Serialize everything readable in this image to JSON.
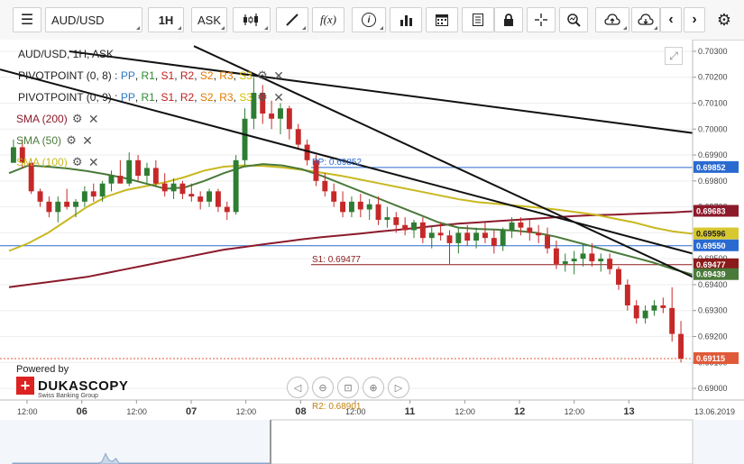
{
  "toolbar": {
    "symbol": "AUD/USD",
    "timeframe": "1H",
    "side": "ASK",
    "function_icon_text": "f(x)"
  },
  "legend": {
    "instrument_line": "AUD/USD, 1H, ASK",
    "pivot1": {
      "name": "PIVOTPOINT (0, 8)",
      "sep": " : ",
      "levels": [
        "PP",
        "R1",
        "S1",
        "R2",
        "S2",
        "R3",
        "S3"
      ]
    },
    "pivot2": {
      "name": "PIVOTPOINT (0, 9)",
      "sep": " : ",
      "levels": [
        "PP",
        "R1",
        "S1",
        "R2",
        "S2",
        "R3",
        "S3"
      ]
    },
    "sma200": "SMA (200)",
    "sma50": "SMA (50)",
    "sma100": "SMA (100)"
  },
  "chart_labels": {
    "pp_line": "PP: 0.69852",
    "s1_line": "S1: 0.69477",
    "bottom_cut": "R2: 0.68901"
  },
  "branding": {
    "powered_by": "Powered by",
    "name": "DUKASCOPY",
    "tagline": "Swiss Banking Group"
  },
  "colors": {
    "bull": "#2e7d32",
    "bear": "#c62828",
    "sma200": "#8b1a2b",
    "sma50": "#4a7a3a",
    "sma100": "#c8b820",
    "pivot_line": "#2a6ad0",
    "s1_line": "#8b1a1a"
  },
  "chart_data": {
    "type": "candlestick",
    "y_axis": {
      "ylim": [
        0.68955,
        0.70345
      ],
      "ticks": [
        "0.70300",
        "0.70200",
        "0.70100",
        "0.70000",
        "0.69900",
        "0.69800",
        "0.69700",
        "0.69600",
        "0.69500",
        "0.69400",
        "0.69300",
        "0.69200",
        "0.69100",
        "0.69000"
      ]
    },
    "x_axis": {
      "labels": [
        {
          "text": "12:00",
          "bold": false
        },
        {
          "text": "06",
          "bold": true
        },
        {
          "text": "12:00",
          "bold": false
        },
        {
          "text": "07",
          "bold": true
        },
        {
          "text": "12:00",
          "bold": false
        },
        {
          "text": "08",
          "bold": true
        },
        {
          "text": "12:00",
          "bold": false
        },
        {
          "text": "11",
          "bold": true
        },
        {
          "text": "12:00",
          "bold": false
        },
        {
          "text": "12",
          "bold": true
        },
        {
          "text": "12:00",
          "bold": false
        },
        {
          "text": "13",
          "bold": true
        }
      ],
      "end_label": "13.06.2019"
    },
    "price_tags": [
      {
        "text": "0.69852",
        "value": 0.69852,
        "bg": "#2a6ad0",
        "fg": "#ffffff"
      },
      {
        "text": "0.69683",
        "value": 0.69683,
        "bg": "#8b1a2b",
        "fg": "#ffffff"
      },
      {
        "text": "0.69596",
        "value": 0.69596,
        "bg": "#d8c830",
        "fg": "#222222"
      },
      {
        "text": "0.69550",
        "value": 0.6955,
        "bg": "#2a6ad0",
        "fg": "#ffffff"
      },
      {
        "text": "0.69477",
        "value": 0.69477,
        "bg": "#8b1a1a",
        "fg": "#ffffff"
      },
      {
        "text": "0.69439",
        "value": 0.69439,
        "bg": "#4a7a3a",
        "fg": "#ffffff"
      },
      {
        "text": "0.69115",
        "value": 0.69115,
        "bg": "#e05a3a",
        "fg": "#ffffff"
      }
    ],
    "horizontal_levels": {
      "pivot_pp": 0.69852,
      "pivot_blue": 0.6955,
      "s1": 0.69477,
      "last_price": 0.69115
    },
    "candles": [
      [
        0.6987,
        0.6996,
        0.6988,
        0.6993
      ],
      [
        0.6993,
        0.6996,
        0.6985,
        0.6987
      ],
      [
        0.6987,
        0.6988,
        0.6975,
        0.6976
      ],
      [
        0.6976,
        0.6977,
        0.697,
        0.6972
      ],
      [
        0.6972,
        0.6974,
        0.6966,
        0.6968
      ],
      [
        0.6968,
        0.6974,
        0.6964,
        0.6972
      ],
      [
        0.6972,
        0.6977,
        0.6969,
        0.697
      ],
      [
        0.697,
        0.6973,
        0.6966,
        0.6972
      ],
      [
        0.6972,
        0.6978,
        0.697,
        0.6976
      ],
      [
        0.6976,
        0.6979,
        0.6972,
        0.6974
      ],
      [
        0.6974,
        0.698,
        0.6972,
        0.6979
      ],
      [
        0.6979,
        0.6984,
        0.6976,
        0.6982
      ],
      [
        0.6982,
        0.6988,
        0.698,
        0.6979
      ],
      [
        0.6979,
        0.6991,
        0.6978,
        0.6988
      ],
      [
        0.6988,
        0.699,
        0.698,
        0.6982
      ],
      [
        0.6982,
        0.6987,
        0.6979,
        0.6985
      ],
      [
        0.6985,
        0.6988,
        0.6978,
        0.6979
      ],
      [
        0.6979,
        0.6983,
        0.6974,
        0.6976
      ],
      [
        0.6976,
        0.6981,
        0.6973,
        0.6979
      ],
      [
        0.6979,
        0.698,
        0.6973,
        0.6975
      ],
      [
        0.6975,
        0.6979,
        0.6972,
        0.6974
      ],
      [
        0.6974,
        0.6976,
        0.6969,
        0.6972
      ],
      [
        0.6972,
        0.6977,
        0.697,
        0.6976
      ],
      [
        0.6976,
        0.6977,
        0.6968,
        0.697
      ],
      [
        0.697,
        0.6972,
        0.6965,
        0.6968
      ],
      [
        0.6968,
        0.699,
        0.6967,
        0.6988
      ],
      [
        0.6988,
        0.7008,
        0.6986,
        0.7004
      ],
      [
        0.7004,
        0.702,
        0.7,
        0.7014
      ],
      [
        0.7014,
        0.7017,
        0.7002,
        0.7006
      ],
      [
        0.7006,
        0.7011,
        0.7,
        0.7004
      ],
      [
        0.7004,
        0.701,
        0.6998,
        0.7008
      ],
      [
        0.7008,
        0.7009,
        0.6996,
        0.7
      ],
      [
        0.7,
        0.7002,
        0.6992,
        0.6994
      ],
      [
        0.6994,
        0.6996,
        0.6986,
        0.6988
      ],
      [
        0.6988,
        0.699,
        0.6978,
        0.698
      ],
      [
        0.698,
        0.6983,
        0.6974,
        0.6976
      ],
      [
        0.6976,
        0.6979,
        0.697,
        0.6972
      ],
      [
        0.6972,
        0.6976,
        0.6966,
        0.6968
      ],
      [
        0.6968,
        0.6974,
        0.6966,
        0.6972
      ],
      [
        0.6972,
        0.6975,
        0.6966,
        0.6969
      ],
      [
        0.6969,
        0.6973,
        0.6965,
        0.6971
      ],
      [
        0.6971,
        0.6974,
        0.6963,
        0.6965
      ],
      [
        0.6965,
        0.697,
        0.6962,
        0.6966
      ],
      [
        0.6966,
        0.6968,
        0.696,
        0.6963
      ],
      [
        0.6963,
        0.6966,
        0.6959,
        0.6961
      ],
      [
        0.6961,
        0.6965,
        0.6958,
        0.6964
      ],
      [
        0.6964,
        0.6966,
        0.6956,
        0.6958
      ],
      [
        0.6958,
        0.6963,
        0.6954,
        0.696
      ],
      [
        0.696,
        0.6964,
        0.6957,
        0.6959
      ],
      [
        0.6959,
        0.6961,
        0.6948,
        0.6956
      ],
      [
        0.6956,
        0.6962,
        0.6952,
        0.696
      ],
      [
        0.696,
        0.6963,
        0.6955,
        0.6957
      ],
      [
        0.6957,
        0.6962,
        0.6954,
        0.696
      ],
      [
        0.696,
        0.6964,
        0.6956,
        0.6958
      ],
      [
        0.6958,
        0.6961,
        0.6952,
        0.6955
      ],
      [
        0.6955,
        0.6962,
        0.6953,
        0.6961
      ],
      [
        0.6961,
        0.6966,
        0.6958,
        0.6964
      ],
      [
        0.6964,
        0.6966,
        0.6959,
        0.6962
      ],
      [
        0.6962,
        0.6965,
        0.6957,
        0.696
      ],
      [
        0.696,
        0.6963,
        0.6956,
        0.6959
      ],
      [
        0.6959,
        0.6962,
        0.6952,
        0.6954
      ],
      [
        0.6954,
        0.6957,
        0.6946,
        0.6948
      ],
      [
        0.6948,
        0.6952,
        0.6945,
        0.6949
      ],
      [
        0.6949,
        0.6953,
        0.6944,
        0.695
      ],
      [
        0.695,
        0.6956,
        0.6947,
        0.6952
      ],
      [
        0.6952,
        0.6956,
        0.6947,
        0.6949
      ],
      [
        0.6949,
        0.6952,
        0.6945,
        0.695
      ],
      [
        0.695,
        0.6952,
        0.6944,
        0.6946
      ],
      [
        0.6946,
        0.6947,
        0.6938,
        0.694
      ],
      [
        0.694,
        0.6942,
        0.693,
        0.6932
      ],
      [
        0.6932,
        0.6934,
        0.6925,
        0.6927
      ],
      [
        0.6927,
        0.6932,
        0.6925,
        0.693
      ],
      [
        0.693,
        0.6934,
        0.6928,
        0.6932
      ],
      [
        0.6932,
        0.6935,
        0.6929,
        0.6931
      ],
      [
        0.6931,
        0.6939,
        0.6918,
        0.6921
      ],
      [
        0.6921,
        0.6926,
        0.691,
        0.69115
      ]
    ],
    "sma200": [
      0.6939,
      0.694,
      0.6941,
      0.6942,
      0.6943,
      0.69445,
      0.6946,
      0.69475,
      0.6949,
      0.69505,
      0.6952,
      0.69535,
      0.69545,
      0.69555,
      0.69565,
      0.69575,
      0.69583,
      0.6959,
      0.69597,
      0.69605,
      0.69612,
      0.6962,
      0.69628,
      0.69635,
      0.6964,
      0.69645,
      0.6965,
      0.69655,
      0.6966,
      0.69665,
      0.69668,
      0.6967,
      0.69673,
      0.69676,
      0.69679,
      0.69683
    ],
    "sma100": [
      0.6953,
      0.6956,
      0.696,
      0.6965,
      0.697,
      0.6974,
      0.69765,
      0.6978,
      0.69795,
      0.69815,
      0.6984,
      0.69855,
      0.6986,
      0.69858,
      0.69852,
      0.69843,
      0.69832,
      0.6982,
      0.69805,
      0.6979,
      0.69775,
      0.6976,
      0.69745,
      0.6973,
      0.69718,
      0.69712,
      0.69705,
      0.69698,
      0.6969,
      0.6968,
      0.6967,
      0.69655,
      0.6964,
      0.6962,
      0.69605,
      0.69596
    ],
    "sma50": [
      0.6983,
      0.6986,
      0.69855,
      0.69848,
      0.69838,
      0.69825,
      0.6981,
      0.6979,
      0.6977,
      0.69775,
      0.698,
      0.6983,
      0.69855,
      0.69865,
      0.6986,
      0.69845,
      0.6982,
      0.6979,
      0.6976,
      0.6973,
      0.697,
      0.6967,
      0.6964,
      0.6962,
      0.69615,
      0.69612,
      0.69608,
      0.696,
      0.69585,
      0.69565,
      0.69545,
      0.69525,
      0.69505,
      0.69485,
      0.6946,
      0.69439
    ],
    "channel_lines": [
      {
        "from": [
          0.1,
          0.703
        ],
        "to": [
          1.0,
          0.69985
        ]
      },
      {
        "from": [
          0.0,
          0.7023
        ],
        "to": [
          1.0,
          0.6952
        ]
      },
      {
        "from": [
          0.28,
          0.7032
        ],
        "to": [
          1.0,
          0.6943
        ]
      }
    ]
  }
}
